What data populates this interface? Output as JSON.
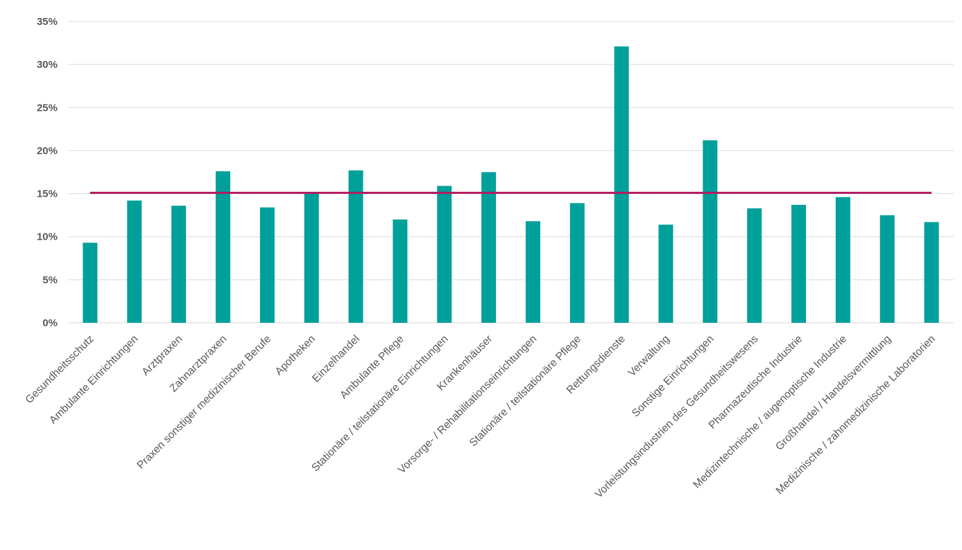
{
  "chart_data": {
    "type": "bar",
    "title": "",
    "xlabel": "",
    "ylabel": "",
    "ylim": [
      0,
      35
    ],
    "yticks": [
      "0%",
      "5%",
      "10%",
      "15%",
      "20%",
      "25%",
      "30%",
      "35%"
    ],
    "grid": true,
    "categories": [
      "Gesundheitsschutz",
      "Ambulante Einrichtungen",
      "Arztpraxen",
      "Zahnarztpraxen",
      "Praxen sonstiger medizinischer Berufe",
      "Apotheken",
      "Einzelhandel",
      "Ambulante Pflege",
      "Stationäre / teilstationäre Einrichtungen",
      "Krankenhäuser",
      "Vorsorge- / Rehabilitationseinrichtungen",
      "Stationäre / teilstationäre Pflege",
      "Rettungsdienste",
      "Verwaltung",
      "Sonstige Einrichtungen",
      "Vorleistungsindustrien des Gesundheitswesens",
      "Pharmazeutische Industrie",
      "Medizintechnische / augenoptische Industrie",
      "Großhandel / Handelsvermittlung",
      "Medizinische / zahnmedizinische Laboratorien"
    ],
    "series": [
      {
        "values": [
          9.3,
          14.2,
          13.6,
          17.6,
          13.4,
          15.0,
          17.7,
          12.0,
          15.9,
          17.5,
          11.8,
          13.9,
          32.1,
          11.4,
          21.2,
          13.3,
          13.7,
          14.6,
          12.5,
          11.7
        ],
        "color": "#00A09A"
      }
    ],
    "reference_line": {
      "value": 15.1,
      "color": "#B5195F"
    }
  }
}
